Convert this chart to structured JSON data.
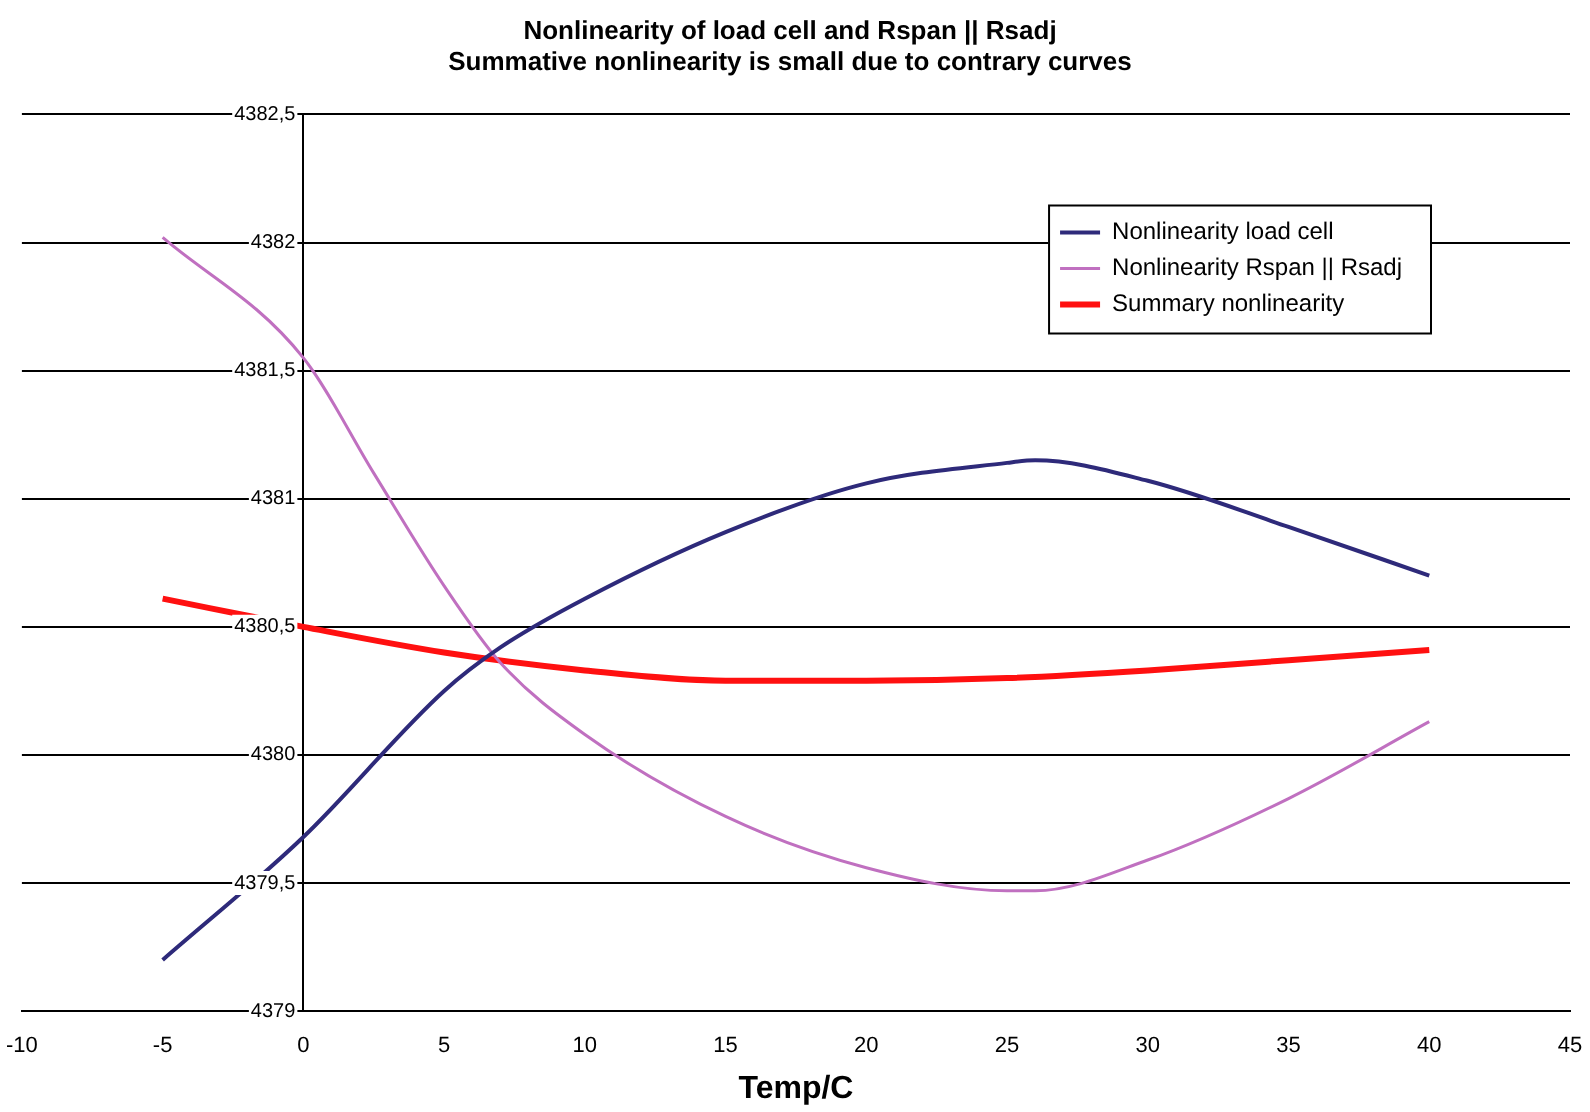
{
  "chart_data": {
    "type": "line",
    "title": "Nonlinearity of load cell and Rspan || Rsadj\nSummative nonlinearity is small due to contrary curves",
    "xlabel": "Temp/C",
    "xlim": [
      -10,
      45
    ],
    "xticks": [
      -10,
      -5,
      0,
      5,
      10,
      15,
      20,
      25,
      30,
      35,
      40,
      45
    ],
    "ylim": [
      4379,
      4382.5
    ],
    "yticks": [
      4379,
      {
        "value": 4379.5,
        "label": "4379,5"
      },
      4380,
      {
        "value": 4380.5,
        "label": "4380,5"
      },
      4381,
      {
        "value": 4381.5,
        "label": "4381,5"
      },
      4382,
      {
        "value": 4382.5,
        "label": "4382,5"
      }
    ],
    "grid": "y",
    "legend": "top right",
    "marker": "none",
    "line_style": "solid",
    "series": [
      {
        "name": "Nonlinearity load cell",
        "color": "#2e2a7a",
        "x": [
          -5,
          0,
          5,
          7,
          10,
          15,
          20,
          25,
          26,
          30,
          35,
          40
        ],
        "values": [
          4379.2,
          4379.68,
          4380.25,
          4380.42,
          4380.61,
          4380.87,
          4381.06,
          4381.14,
          4381.15,
          4381.07,
          4380.89,
          4380.7
        ]
      },
      {
        "name": "Nonlinearity Rspan || Rsadj",
        "color": "#c070c0",
        "x": [
          -5,
          0,
          2.5,
          5,
          7,
          10,
          15,
          20,
          25,
          26,
          30,
          35,
          40
        ],
        "values": [
          4382.02,
          4381.55,
          4381.1,
          4380.66,
          4380.36,
          4380.08,
          4379.76,
          4379.56,
          4379.47,
          4379.47,
          4379.59,
          4379.83,
          4380.13
        ]
      },
      {
        "name": "Summary nonlinearity",
        "color": "#ff1010",
        "x": [
          -5,
          0,
          5,
          10,
          15,
          20,
          25,
          30,
          35,
          40
        ],
        "values": [
          4380.61,
          4380.5,
          4380.4,
          4380.33,
          4380.29,
          4380.29,
          4380.3,
          4380.33,
          4380.37,
          4380.41
        ]
      }
    ]
  }
}
